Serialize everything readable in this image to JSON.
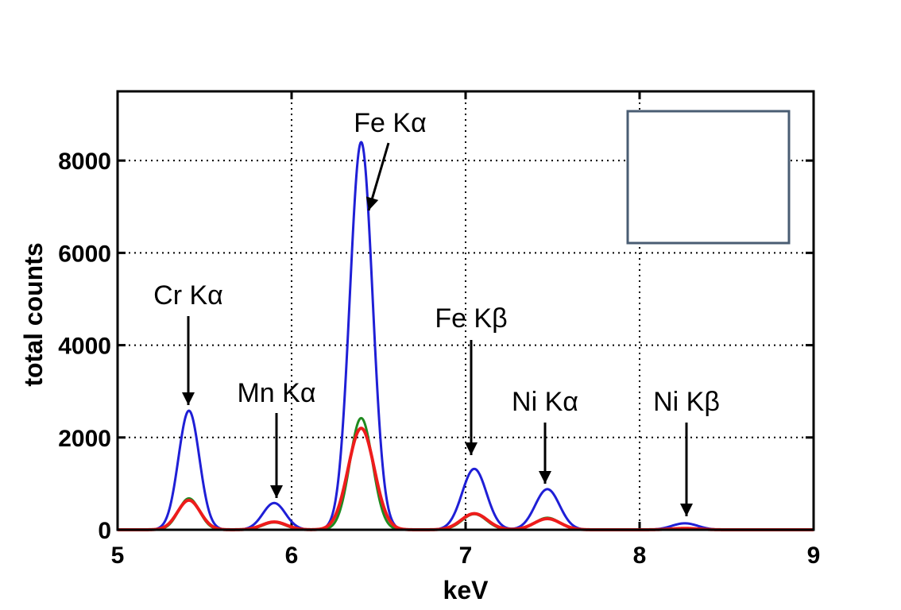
{
  "chart_data": {
    "type": "line",
    "title": "",
    "xlabel": "keV",
    "ylabel": "total counts",
    "xlim": [
      5,
      9
    ],
    "ylim": [
      0,
      9500
    ],
    "xticks": [
      5,
      6,
      7,
      8,
      9
    ],
    "yticks": [
      0,
      2000,
      4000,
      6000,
      8000
    ],
    "xtick_labels": [
      "5",
      "6",
      "7",
      "8",
      "9"
    ],
    "ytick_labels": [
      "0",
      "2000",
      "4000",
      "6000",
      "8000"
    ],
    "grid": true,
    "legend": "top-right (empty box)",
    "series": [
      {
        "color": "#1f1fd6",
        "peaks": [
          {
            "x": 5.41,
            "y": 2580,
            "sigma": 0.06
          },
          {
            "x": 5.9,
            "y": 580,
            "sigma": 0.065
          },
          {
            "x": 6.4,
            "y": 8400,
            "sigma": 0.065
          },
          {
            "x": 7.05,
            "y": 1320,
            "sigma": 0.07
          },
          {
            "x": 7.47,
            "y": 880,
            "sigma": 0.07
          },
          {
            "x": 8.26,
            "y": 140,
            "sigma": 0.075
          }
        ]
      },
      {
        "color": "#1f8a1f",
        "peaks": [
          {
            "x": 5.41,
            "y": 680,
            "sigma": 0.06
          },
          {
            "x": 5.9,
            "y": 160,
            "sigma": 0.065
          },
          {
            "x": 6.4,
            "y": 2420,
            "sigma": 0.065
          },
          {
            "x": 7.05,
            "y": 340,
            "sigma": 0.07
          },
          {
            "x": 7.47,
            "y": 260,
            "sigma": 0.07
          },
          {
            "x": 8.26,
            "y": 30,
            "sigma": 0.075
          }
        ]
      },
      {
        "color": "#ee1c1c",
        "peaks": [
          {
            "x": 5.41,
            "y": 640,
            "sigma": 0.065
          },
          {
            "x": 5.9,
            "y": 170,
            "sigma": 0.07
          },
          {
            "x": 6.4,
            "y": 2200,
            "sigma": 0.075
          },
          {
            "x": 7.05,
            "y": 350,
            "sigma": 0.075
          },
          {
            "x": 7.47,
            "y": 240,
            "sigma": 0.075
          },
          {
            "x": 8.26,
            "y": 30,
            "sigma": 0.08
          }
        ]
      }
    ],
    "annotations": [
      {
        "text": "Cr Kα",
        "x": 5.41,
        "y": 2580
      },
      {
        "text": "Mn Kα",
        "x": 5.9,
        "y": 580
      },
      {
        "text": "Fe Kα",
        "x": 6.45,
        "y": 7000
      },
      {
        "text": "Fe Kβ",
        "x": 7.03,
        "y": 1550
      },
      {
        "text": "Ni Kα",
        "x": 7.45,
        "y": 950
      },
      {
        "text": "Ni Kβ",
        "x": 8.26,
        "y": 280
      }
    ]
  }
}
